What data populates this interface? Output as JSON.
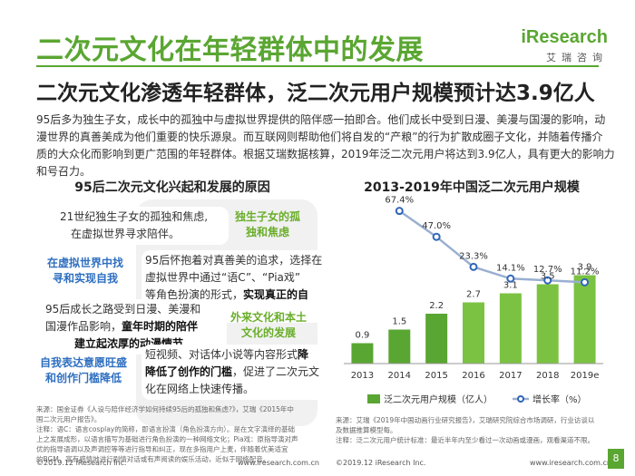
{
  "header": {
    "title": "二次元文化在年轻群体中的发展",
    "subtitle": "二次元文化渗透年轻群体，泛二次元用户规模预计达3.9亿人",
    "logo_text": "iResearch",
    "logo_sub": "艾瑞咨询"
  },
  "intro": [
    "95后多为独生子女，成长中的孤独中与虚拟世界提供的陪伴感一拍即合。他们成长中受到日漫、美漫与国漫的影响，动",
    "漫世界的真善美成为他们重要的快乐源泉。而互联网则帮助他们将自发的“产粮”的行为扩散成圈子文化，并随着传播介",
    "质的大众化而影响到更广范围的年轻群体。根据艾瑞数据核算，2019年泛二次元用户将达到3.9亿人，具有更大的影响力",
    "和号召力。"
  ],
  "left_panel": {
    "title": "95后二次元文化兴起和发展的原因",
    "reasons": [
      {
        "label": "独生子女的孤独和焦虑",
        "text_lines": [
          "21世纪独生子女的孤独和焦虑,",
          "在虚拟世界寻求陪伴。"
        ]
      },
      {
        "label": "在虚拟世界中找寻和实现自我",
        "text_lines": [
          "95后怀抱着对真善美的追求，选择在",
          "虚拟世界中通过“语C”、“Pia戏”",
          "等角色扮演的形式，"
        ],
        "bold": "实现真正的自我。"
      },
      {
        "label": "外来文化和本土文化的发展",
        "text_lines": [
          "95后成长之路受到日漫、美漫和",
          "国漫作品影响，"
        ],
        "bold_lines": [
          "童年时期的陪伴",
          "建立起浓厚的动漫情节。"
        ]
      },
      {
        "label": "自我表达意愿旺盛和创作门槛降低",
        "text_lines": [
          "短视频、对话体小说等内容形式"
        ],
        "bold_inline": "降低了创作的门槛",
        "tail": "，促进了二次元文",
        "tail2": "化在网络上快速传播。"
      }
    ],
    "labels_split": {
      "r1": [
        "独生子女的孤",
        "独和焦虑"
      ],
      "r2": [
        "在虚拟世界中找",
        "寻和实现自我"
      ],
      "r3": [
        "外来文化和本土",
        "文化的发展"
      ],
      "r4": [
        "自我表达意愿旺盛",
        "和创作门槛降低"
      ]
    },
    "bold_r4": "降",
    "source": [
      "来源：国金证券《人设与陪伴经济学如何持续95后的孤独和焦虑?》，艾瑞《2015年中",
      "国二次元用户报告》。",
      "注释：语C：语言cosplay的简称，即语言扮演（角色扮演方向）。是在文字演绎的基础",
      "上之发展成形，以语言描写为基础进行角色扮演的一种网络文化；Pia戏：原指导演对声",
      "优的指导语调以及声调控等等进行指导和纠正，现在多指用户上麦，伴随着优美适宜",
      "的BGM，富有感情地进行剧情对话或有声阅读的娱乐活动，近似于网络配音。"
    ]
  },
  "chart_data": {
    "type": "bar",
    "title": "2013-2019年中国泛二次元用户规模",
    "categories": [
      "2013",
      "2014",
      "2015",
      "2016",
      "2017",
      "2018",
      "2019e"
    ],
    "series": [
      {
        "name": "泛二次元用户规模（亿人）",
        "kind": "bar",
        "values": [
          0.9,
          1.5,
          2.2,
          2.7,
          3.1,
          3.5,
          3.9
        ],
        "labels": [
          "0.9",
          "1.5",
          "2.2",
          "2.7",
          "3.1",
          "3.5",
          "3.9"
        ]
      },
      {
        "name": "增长率（%）",
        "kind": "line",
        "values": [
          null,
          67.4,
          47.0,
          23.3,
          14.1,
          12.7,
          11.2
        ],
        "labels": [
          "",
          "67.4%",
          "47.0%",
          "23.3%",
          "14.1%",
          "12.7%",
          "11.2%"
        ]
      }
    ],
    "legend_position": "bottom",
    "colors": {
      "bar_dark": "#5aa632",
      "bar_light": "#7cc242",
      "line": "#9aafd0",
      "marker": "#2f66b8"
    },
    "source": [
      "来源：艾瑞《2019年中国动画行业研究报告》，艾瑞研究院综合市场调研，行业访谈以",
      "及数据推算模型每。",
      "注释：泛二次元用户统计标准：最近半年内至少看过一次动画或漫画，观看渠道不限。"
    ]
  },
  "footer": {
    "left_copy": "©2019.12 iResearch Inc.",
    "left_url": "www.iresearch.com.cn",
    "right_copy": "©2019.12 iResearch Inc.",
    "right_url": "www.iresearch.com.cn",
    "page": "8"
  }
}
